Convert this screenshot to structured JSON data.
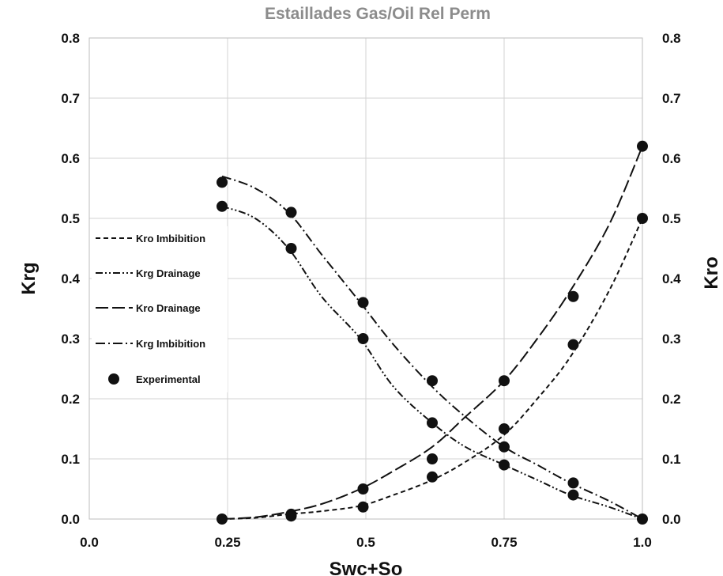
{
  "chart_data": {
    "type": "line",
    "title": "Estaillades Gas/Oil Rel Perm",
    "xlabel": "Swc+So",
    "ylabel_left": "Krg",
    "ylabel_right": "Kro",
    "xlim": [
      0.0,
      1.0
    ],
    "ylim": [
      0.0,
      0.8
    ],
    "x_ticks": [
      "0.0",
      "0.25",
      "0.5",
      "0.75",
      "1.0"
    ],
    "y_ticks": [
      "0.0",
      "0.1",
      "0.2",
      "0.3",
      "0.4",
      "0.5",
      "0.6",
      "0.7",
      "0.8"
    ],
    "grid": true,
    "legend_position": "left-middle",
    "series": [
      {
        "name": "Kro Imbibition",
        "style": "dashed",
        "x": [
          0.24,
          0.3,
          0.36,
          0.42,
          0.49,
          0.55,
          0.62,
          0.68,
          0.75,
          0.81,
          0.87,
          0.94,
          1.0
        ],
        "values": [
          0.0,
          0.002,
          0.008,
          0.013,
          0.022,
          0.04,
          0.065,
          0.095,
          0.14,
          0.2,
          0.27,
          0.38,
          0.5
        ]
      },
      {
        "name": "Krg Drainage",
        "style": "dash-dot-dot",
        "x": [
          0.24,
          0.3,
          0.36,
          0.42,
          0.49,
          0.55,
          0.62,
          0.68,
          0.75,
          0.81,
          0.87,
          0.94,
          1.0
        ],
        "values": [
          0.52,
          0.5,
          0.45,
          0.37,
          0.3,
          0.22,
          0.16,
          0.12,
          0.09,
          0.065,
          0.04,
          0.02,
          0.0
        ]
      },
      {
        "name": "Kro Drainage",
        "style": "long-dash",
        "x": [
          0.24,
          0.3,
          0.36,
          0.42,
          0.49,
          0.55,
          0.62,
          0.68,
          0.75,
          0.81,
          0.87,
          0.94,
          1.0
        ],
        "values": [
          0.0,
          0.003,
          0.012,
          0.025,
          0.05,
          0.08,
          0.12,
          0.17,
          0.23,
          0.3,
          0.38,
          0.49,
          0.62
        ]
      },
      {
        "name": "Krg Imbibition",
        "style": "dash-dot",
        "x": [
          0.24,
          0.3,
          0.36,
          0.42,
          0.49,
          0.55,
          0.62,
          0.68,
          0.75,
          0.81,
          0.87,
          0.94,
          1.0
        ],
        "values": [
          0.57,
          0.55,
          0.51,
          0.44,
          0.36,
          0.29,
          0.22,
          0.17,
          0.12,
          0.09,
          0.06,
          0.03,
          0.0
        ]
      }
    ],
    "experimental": {
      "name": "Experimental",
      "points": [
        {
          "x": 0.24,
          "y": 0.56
        },
        {
          "x": 0.24,
          "y": 0.52
        },
        {
          "x": 0.24,
          "y": 0.0
        },
        {
          "x": 0.365,
          "y": 0.51
        },
        {
          "x": 0.365,
          "y": 0.45
        },
        {
          "x": 0.365,
          "y": 0.008
        },
        {
          "x": 0.365,
          "y": 0.005
        },
        {
          "x": 0.495,
          "y": 0.36
        },
        {
          "x": 0.495,
          "y": 0.3
        },
        {
          "x": 0.495,
          "y": 0.05
        },
        {
          "x": 0.495,
          "y": 0.02
        },
        {
          "x": 0.62,
          "y": 0.23
        },
        {
          "x": 0.62,
          "y": 0.16
        },
        {
          "x": 0.62,
          "y": 0.1
        },
        {
          "x": 0.62,
          "y": 0.07
        },
        {
          "x": 0.75,
          "y": 0.23
        },
        {
          "x": 0.75,
          "y": 0.15
        },
        {
          "x": 0.75,
          "y": 0.12
        },
        {
          "x": 0.75,
          "y": 0.09
        },
        {
          "x": 0.875,
          "y": 0.37
        },
        {
          "x": 0.875,
          "y": 0.29
        },
        {
          "x": 0.875,
          "y": 0.06
        },
        {
          "x": 0.875,
          "y": 0.04
        },
        {
          "x": 1.0,
          "y": 0.62
        },
        {
          "x": 1.0,
          "y": 0.5
        },
        {
          "x": 1.0,
          "y": 0.0
        }
      ]
    }
  }
}
